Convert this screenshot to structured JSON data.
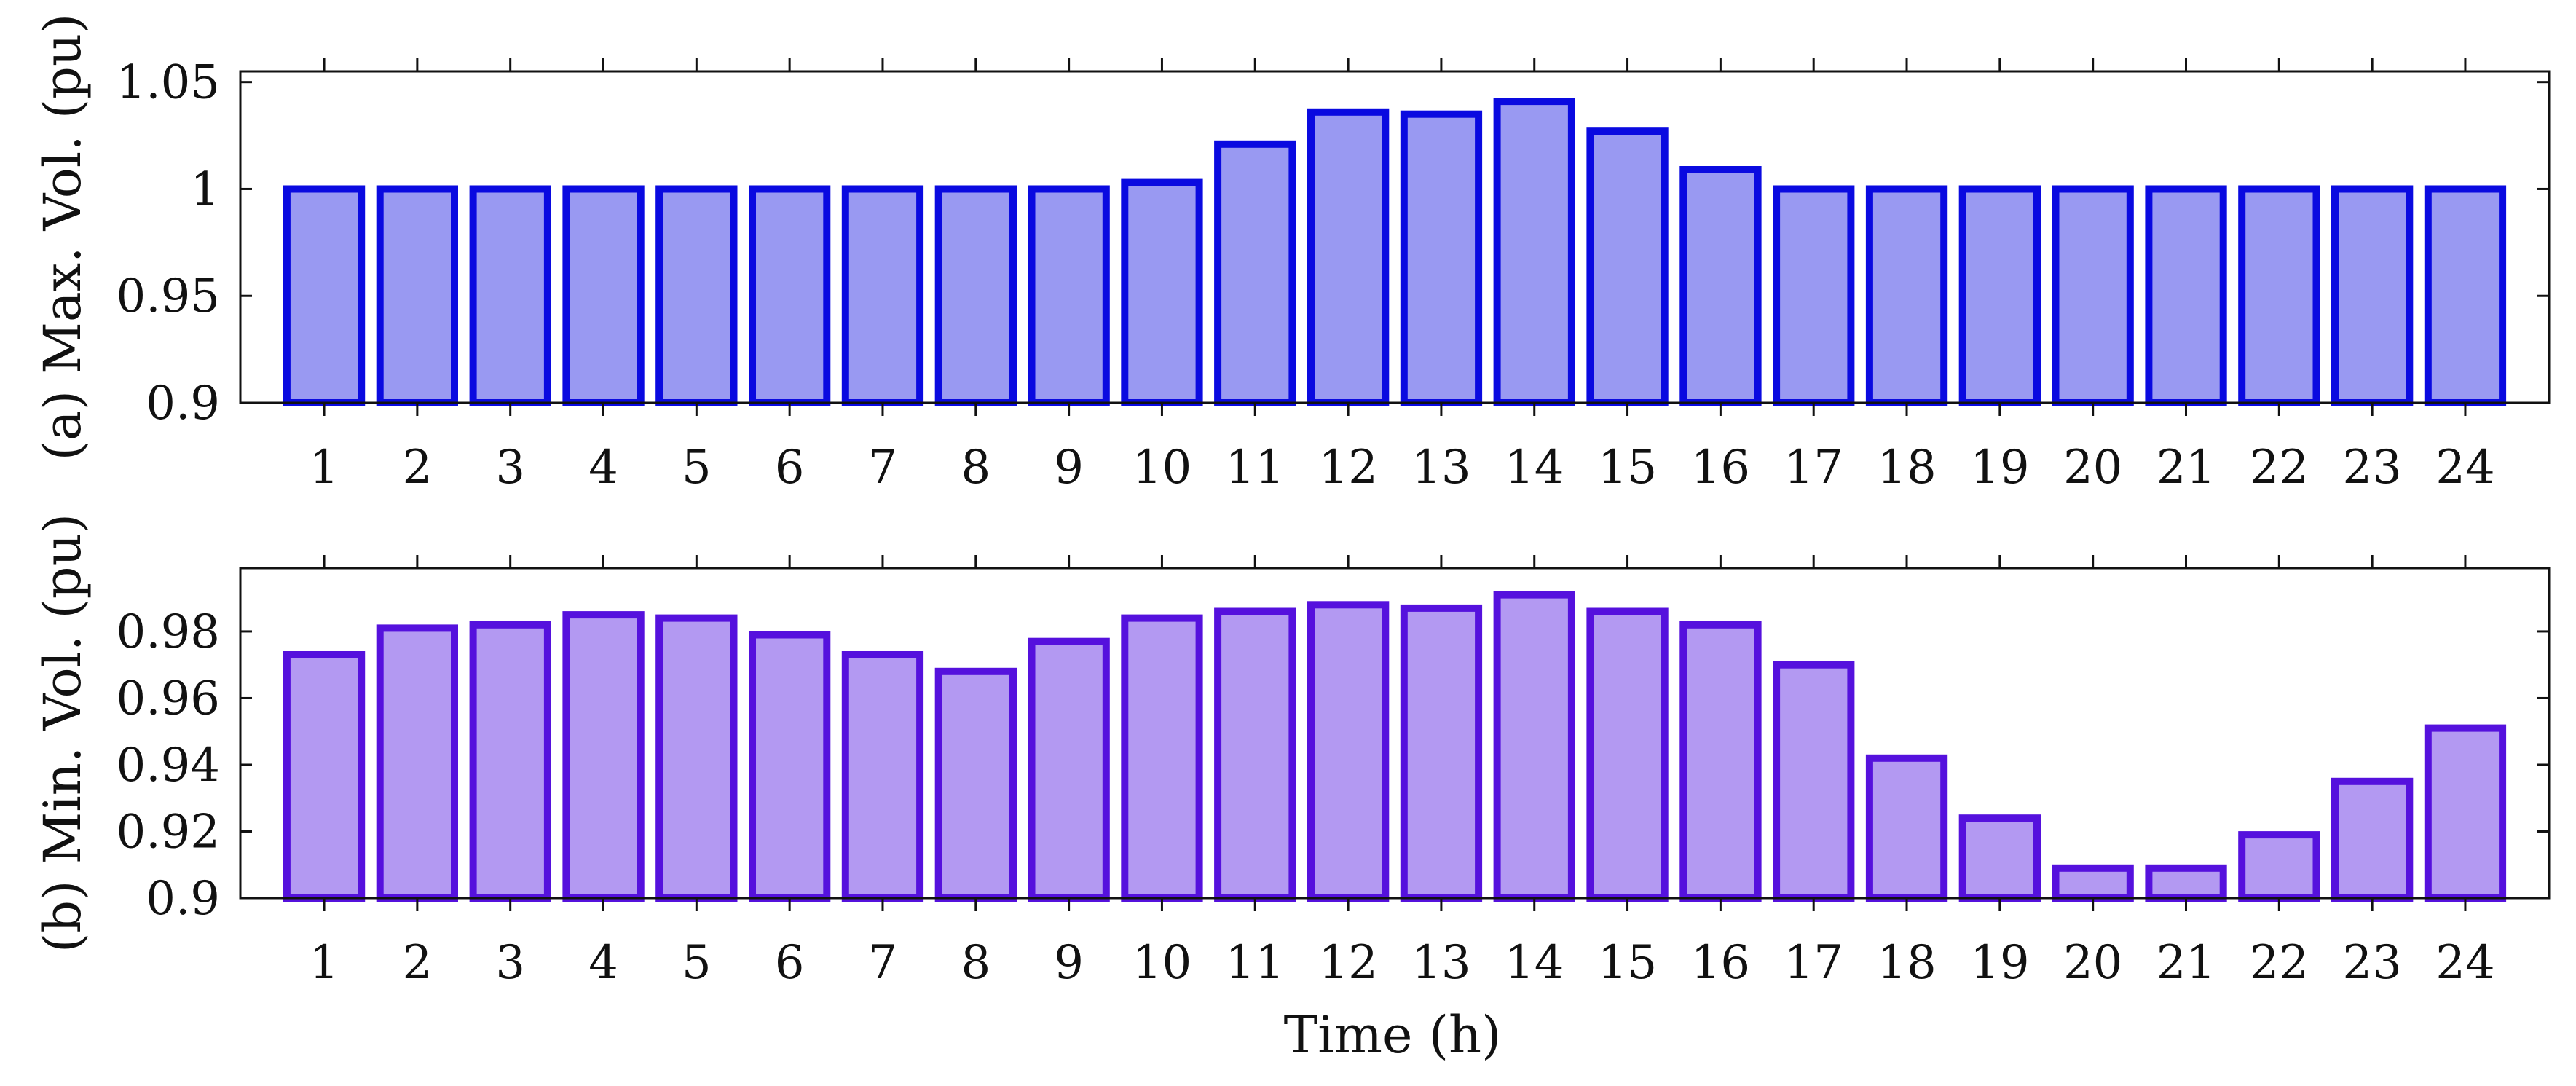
{
  "colors": {
    "panel_a_fill": "#9999f2",
    "panel_a_stroke": "#0a0ae0",
    "panel_b_fill": "#b399f2",
    "panel_b_stroke": "#5511dd",
    "axis": "#111111"
  },
  "xlabel": "Time (h)",
  "chart_data": [
    {
      "type": "bar",
      "title": "",
      "ylabel": "(a) Max. Vol. (pu)",
      "xlabel": "",
      "ylim": [
        0.9,
        1.055
      ],
      "yticks": [
        0.9,
        0.95,
        1,
        1.05
      ],
      "ytick_labels": [
        "0.9",
        "0.95",
        "1",
        "1.05"
      ],
      "categories": [
        "1",
        "2",
        "3",
        "4",
        "5",
        "6",
        "7",
        "8",
        "9",
        "10",
        "11",
        "12",
        "13",
        "14",
        "15",
        "16",
        "17",
        "18",
        "19",
        "20",
        "21",
        "22",
        "23",
        "24"
      ],
      "values": [
        1.0,
        1.0,
        1.0,
        1.0,
        1.0,
        1.0,
        1.0,
        1.0,
        1.0,
        1.003,
        1.021,
        1.036,
        1.035,
        1.041,
        1.027,
        1.009,
        1.0,
        1.0,
        1.0,
        1.0,
        1.0,
        1.0,
        1.0,
        1.0
      ]
    },
    {
      "type": "bar",
      "title": "",
      "ylabel": "(b) Min. Vol. (pu)",
      "xlabel": "Time (h)",
      "ylim": [
        0.9,
        0.999
      ],
      "yticks": [
        0.9,
        0.92,
        0.94,
        0.96,
        0.98
      ],
      "ytick_labels": [
        "0.9",
        "0.92",
        "0.94",
        "0.96",
        "0.98"
      ],
      "categories": [
        "1",
        "2",
        "3",
        "4",
        "5",
        "6",
        "7",
        "8",
        "9",
        "10",
        "11",
        "12",
        "13",
        "14",
        "15",
        "16",
        "17",
        "18",
        "19",
        "20",
        "21",
        "22",
        "23",
        "24"
      ],
      "values": [
        0.973,
        0.981,
        0.982,
        0.985,
        0.984,
        0.979,
        0.973,
        0.968,
        0.977,
        0.984,
        0.986,
        0.988,
        0.987,
        0.991,
        0.986,
        0.982,
        0.97,
        0.942,
        0.924,
        0.909,
        0.909,
        0.919,
        0.935,
        0.951
      ]
    }
  ]
}
